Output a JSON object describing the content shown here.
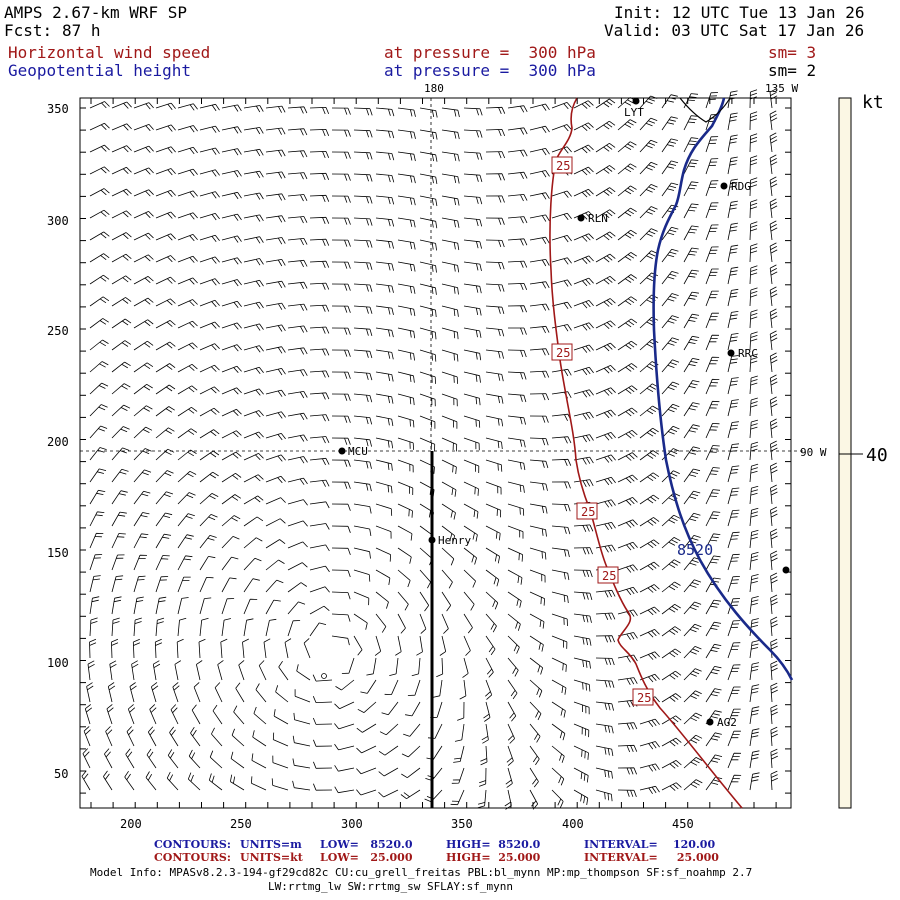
{
  "header": {
    "model": "AMPS 2.67-km WRF SP",
    "init": "Init: 12 UTC Tue 13 Jan 26",
    "fcst_label": "Fcst:",
    "fcst_value": "87 h",
    "valid": "Valid: 03 UTC Sat 17 Jan 26",
    "field1": "Horizontal wind speed",
    "field2": "Geopotential height",
    "level1": "at pressure =  300 hPa",
    "level2": "at pressure =  300 hPa",
    "sm1": "sm= 3",
    "sm2": "sm= 2"
  },
  "map": {
    "lon_labels": [
      "180",
      "135 W",
      "90 W"
    ],
    "x_ticks": [
      "200",
      "250",
      "300",
      "350",
      "400",
      "450"
    ],
    "y_ticks": [
      "50",
      "100",
      "150",
      "200",
      "250",
      "300",
      "350"
    ],
    "stations": [
      "LYT",
      "RLN",
      "RDG",
      "RRC",
      "MCU",
      "Henry",
      "AG2"
    ],
    "red_contour_label": "25",
    "blue_contour_label": "8520",
    "colorbar_unit": "kt",
    "colorbar_value": "40",
    "colors": {
      "wind_contour": "#a01818",
      "height_contour": "#1a2a8a",
      "colorbar_fill": "#fbf7e4"
    }
  },
  "footer": {
    "line1": {
      "contours": "CONTOURS:",
      "units": "UNITS=m",
      "low": "LOW=   8520.0",
      "high": "HIGH=  8520.0",
      "interval": "INTERVAL=    120.00"
    },
    "line2": {
      "contours": "CONTOURS:",
      "units": "UNITS=kt",
      "low": "LOW=   25.000",
      "high": "HIGH=  25.000",
      "interval": "INTERVAL=     25.000"
    },
    "model_info_1": "Model Info: MPASv8.2.3-194-gf29cd82c CU:cu_grell_freitas PBL:bl_mynn MP:mp_thompson SF:sf_noahmp 2.7",
    "model_info_2": "LW:rrtmg_lw SW:rrtmg_sw SFLAY:sf_mynn"
  }
}
